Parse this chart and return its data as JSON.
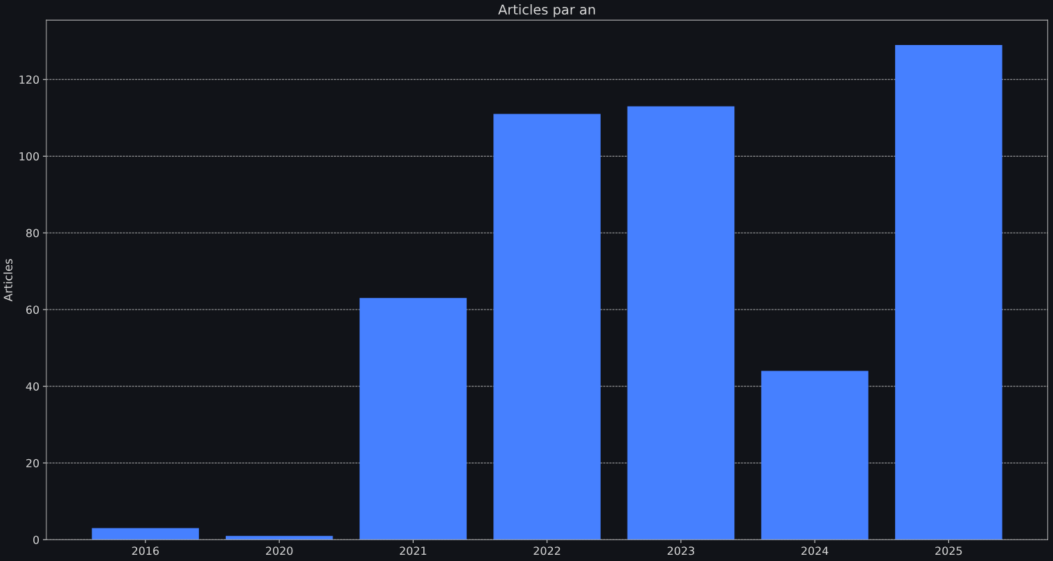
{
  "chart_data": {
    "type": "bar",
    "title": "Articles par an",
    "ylabel": "Articles",
    "categories": [
      "2016",
      "2020",
      "2021",
      "2022",
      "2023",
      "2024",
      "2025"
    ],
    "values": [
      3,
      1,
      63,
      111,
      113,
      44,
      129
    ],
    "color": "#4680ff",
    "ylim": [
      0,
      135.45
    ],
    "yticks": [
      0,
      20,
      40,
      60,
      80,
      100,
      120
    ],
    "grid": "y",
    "line_style": "dashed"
  }
}
